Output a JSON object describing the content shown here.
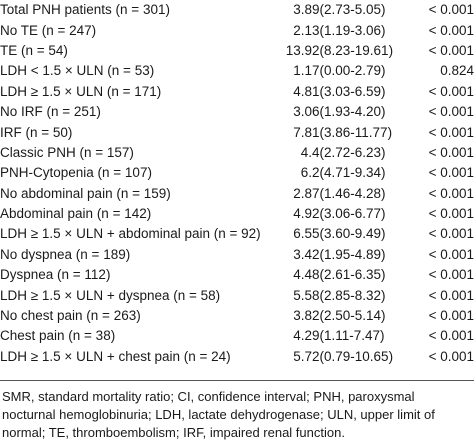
{
  "table": {
    "rows": [
      {
        "group": "Total PNH patients (n = 301)",
        "smr": "3.89",
        "ci": "(2.73-5.05)",
        "p": "< 0.001"
      },
      {
        "group": "No TE (n = 247)",
        "smr": "2.13",
        "ci": "(1.19-3.06)",
        "p": "< 0.001"
      },
      {
        "group": "TE (n = 54)",
        "smr": "13.92",
        "ci": "(8.23-19.61)",
        "p": "< 0.001"
      },
      {
        "group": "LDH  < 1.5 × ULN (n = 53)",
        "smr": "1.17",
        "ci": "(0.00-2.79)",
        "p": "0.824"
      },
      {
        "group": "LDH  ≥ 1.5 × ULN (n = 171)",
        "smr": "4.81",
        "ci": "(3.03-6.59)",
        "p": "< 0.001"
      },
      {
        "group": "No IRF (n = 251)",
        "smr": "3.06",
        "ci": "(1.93-4.20)",
        "p": "< 0.001"
      },
      {
        "group": "IRF (n = 50)",
        "smr": "7.81",
        "ci": "(3.86-11.77)",
        "p": "< 0.001"
      },
      {
        "group": "Classic PNH (n = 157)",
        "smr": "4.4",
        "ci": "(2.72-6.23)",
        "p": "< 0.001"
      },
      {
        "group": "PNH-Cytopenia (n = 107)",
        "smr": "6.2",
        "ci": "(4.71-9.34)",
        "p": "< 0.001"
      },
      {
        "group": "No abdominal pain (n = 159)",
        "smr": "2.87",
        "ci": "(1.46-4.28)",
        "p": "< 0.001"
      },
      {
        "group": "Abdominal pain (n = 142)",
        "smr": "4.92",
        "ci": "(3.06-6.77)",
        "p": "< 0.001"
      },
      {
        "group": "LDH  ≥ 1.5 × ULN + abdominal pain (n = 92)",
        "smr": "6.55",
        "ci": "(3.60-9.49)",
        "p": "< 0.001"
      },
      {
        "group": "No dyspnea (n = 189)",
        "smr": "3.42",
        "ci": "(1.95-4.89)",
        "p": "< 0.001"
      },
      {
        "group": "Dyspnea (n = 112)",
        "smr": "4.48",
        "ci": "(2.61-6.35)",
        "p": "< 0.001"
      },
      {
        "group": "LDH  ≥ 1.5 × ULN + dyspnea (n = 58)",
        "smr": "5.58",
        "ci": "(2.85-8.32)",
        "p": "< 0.001"
      },
      {
        "group": "No chest pain (n = 263)",
        "smr": "3.82",
        "ci": "(2.50-5.14)",
        "p": "< 0.001"
      },
      {
        "group": "Chest pain (n = 38)",
        "smr": "4.29",
        "ci": "(1.11-7.47)",
        "p": "< 0.001"
      },
      {
        "group": "LDH  ≥ 1.5 × ULN + chest pain (n = 24)",
        "smr": "5.72",
        "ci": "(0.79-10.65)",
        "p": "< 0.001"
      }
    ]
  },
  "footnote": "SMR, standard mortality ratio; CI, confidence interval; PNH, paroxysmal nocturnal hemoglobinuria; LDH, lactate dehydrogenase; ULN, upper limit of normal; TE, thromboembolism; IRF, impaired renal function."
}
